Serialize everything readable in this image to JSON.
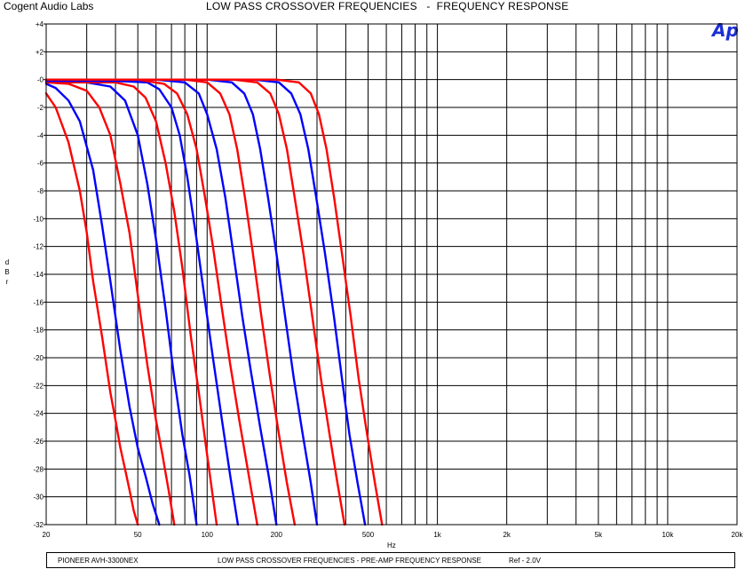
{
  "header": {
    "company": "Cogent Audio Labs",
    "title": "LOW PASS CROSSOVER FREQUENCIES   -  FREQUENCY RESPONSE",
    "logo_text": "Ap"
  },
  "footer": {
    "device": "PIONEER AVH-3300NEX",
    "description": "LOW PASS CROSSOVER FREQUENCIES - PRE-AMP FREQUENCY RESPONSE",
    "reference": "Ref - 2.0V"
  },
  "chart_data": {
    "type": "line",
    "title": "LOW PASS CROSSOVER FREQUENCIES   -  FREQUENCY RESPONSE",
    "xlabel": "Hz",
    "ylabel": "dBr",
    "x_scale": "log",
    "xlim": [
      20,
      20000
    ],
    "ylim": [
      -32,
      4
    ],
    "grid": true,
    "legend": "none",
    "x_ticks": [
      {
        "value": 20,
        "label": "20"
      },
      {
        "value": 50,
        "label": "50"
      },
      {
        "value": 100,
        "label": "100"
      },
      {
        "value": 200,
        "label": "200"
      },
      {
        "value": 500,
        "label": "500"
      },
      {
        "value": 1000,
        "label": "1k"
      },
      {
        "value": 2000,
        "label": "2k"
      },
      {
        "value": 5000,
        "label": "5k"
      },
      {
        "value": 10000,
        "label": "10k"
      },
      {
        "value": 20000,
        "label": "20k"
      }
    ],
    "y_ticks": [
      {
        "value": 4,
        "label": "+4"
      },
      {
        "value": 2,
        "label": "+2"
      },
      {
        "value": 0,
        "label": "-0"
      },
      {
        "value": -2,
        "label": "-2"
      },
      {
        "value": -4,
        "label": "-4"
      },
      {
        "value": -6,
        "label": "-6"
      },
      {
        "value": -8,
        "label": "-8"
      },
      {
        "value": -10,
        "label": "-10"
      },
      {
        "value": -12,
        "label": "-12"
      },
      {
        "value": -14,
        "label": "-14"
      },
      {
        "value": -16,
        "label": "-16"
      },
      {
        "value": -18,
        "label": "-18"
      },
      {
        "value": -20,
        "label": "-20"
      },
      {
        "value": -22,
        "label": "-22"
      },
      {
        "value": -24,
        "label": "-24"
      },
      {
        "value": -26,
        "label": "-26"
      },
      {
        "value": -28,
        "label": "-28"
      },
      {
        "value": -30,
        "label": "-30"
      },
      {
        "value": -32,
        "label": "-32"
      }
    ],
    "series": [
      {
        "color": "#ff0000",
        "x": [
          20,
          22,
          25,
          28,
          30,
          32,
          35,
          38,
          40,
          42,
          44,
          46,
          48,
          50
        ],
        "y": [
          -1.0,
          -2.0,
          -4.5,
          -8.0,
          -11.0,
          -14.5,
          -18.5,
          -22.5,
          -24.5,
          -26.5,
          -28.0,
          -29.5,
          -31.0,
          -32.0
        ]
      },
      {
        "color": "#0000ff",
        "x": [
          20,
          22,
          25,
          28,
          32,
          35,
          38,
          42,
          46,
          50,
          54,
          58,
          62
        ],
        "y": [
          -0.3,
          -0.6,
          -1.5,
          -3.0,
          -6.5,
          -10.5,
          -14.5,
          -19.5,
          -23.5,
          -26.5,
          -28.5,
          -30.5,
          -32.0
        ]
      },
      {
        "color": "#ff0000",
        "x": [
          20,
          25,
          30,
          34,
          38,
          42,
          46,
          50,
          55,
          60,
          64,
          68,
          72
        ],
        "y": [
          -0.2,
          -0.3,
          -0.8,
          -2.0,
          -4.0,
          -7.5,
          -11.0,
          -15.5,
          -20.5,
          -24.5,
          -27.0,
          -29.5,
          -32.0
        ]
      },
      {
        "color": "#0000ff",
        "x": [
          20,
          30,
          38,
          44,
          50,
          55,
          60,
          66,
          72,
          78,
          84,
          90
        ],
        "y": [
          -0.2,
          -0.2,
          -0.5,
          -1.5,
          -4.0,
          -7.5,
          -11.5,
          -16.5,
          -21.5,
          -25.5,
          -28.5,
          -32.0
        ]
      },
      {
        "color": "#ff0000",
        "x": [
          20,
          30,
          40,
          48,
          54,
          60,
          66,
          72,
          78,
          85,
          92,
          100,
          110
        ],
        "y": [
          -0.2,
          -0.2,
          -0.2,
          -0.5,
          -1.3,
          -3.0,
          -6.0,
          -9.5,
          -13.5,
          -18.5,
          -22.5,
          -27.0,
          -32.0
        ]
      },
      {
        "color": "#0000ff",
        "x": [
          20,
          40,
          55,
          62,
          70,
          76,
          82,
          90,
          98,
          106,
          116,
          126,
          136
        ],
        "y": [
          -0.1,
          -0.1,
          -0.2,
          -0.7,
          -2.0,
          -4.0,
          -7.0,
          -11.5,
          -16.0,
          -20.0,
          -24.5,
          -28.5,
          -32.0
        ]
      },
      {
        "color": "#ff0000",
        "x": [
          20,
          50,
          65,
          74,
          82,
          90,
          98,
          106,
          116,
          126,
          138,
          150,
          165
        ],
        "y": [
          0.0,
          0.0,
          -0.3,
          -1.0,
          -2.5,
          -5.0,
          -8.5,
          -12.0,
          -16.5,
          -20.5,
          -24.5,
          -28.0,
          -32.0
        ]
      },
      {
        "color": "#0000ff",
        "x": [
          20,
          60,
          80,
          92,
          100,
          110,
          120,
          130,
          142,
          155,
          170,
          185,
          200
        ],
        "y": [
          0.0,
          0.0,
          -0.2,
          -1.0,
          -2.5,
          -5.0,
          -8.5,
          -12.5,
          -17.0,
          -21.0,
          -25.0,
          -28.5,
          -32.0
        ]
      },
      {
        "color": "#ff0000",
        "x": [
          20,
          80,
          100,
          114,
          125,
          135,
          146,
          158,
          172,
          188,
          205,
          222,
          240
        ],
        "y": [
          0.0,
          0.0,
          -0.2,
          -1.0,
          -2.5,
          -5.0,
          -8.5,
          -12.5,
          -17.0,
          -21.5,
          -25.5,
          -29.0,
          -32.0
        ]
      },
      {
        "color": "#0000ff",
        "x": [
          20,
          100,
          128,
          145,
          158,
          170,
          184,
          200,
          218,
          238,
          260,
          282,
          300
        ],
        "y": [
          0.0,
          0.0,
          -0.2,
          -1.0,
          -2.5,
          -5.0,
          -8.5,
          -12.5,
          -17.0,
          -21.5,
          -25.5,
          -29.0,
          -32.0
        ]
      },
      {
        "color": "#ff0000",
        "x": [
          20,
          130,
          165,
          188,
          205,
          222,
          240,
          262,
          286,
          312,
          340,
          368,
          395
        ],
        "y": [
          0.0,
          0.0,
          -0.2,
          -1.0,
          -2.5,
          -5.0,
          -8.5,
          -12.5,
          -17.0,
          -21.5,
          -25.5,
          -29.0,
          -32.0
        ]
      },
      {
        "color": "#0000ff",
        "x": [
          20,
          160,
          205,
          232,
          254,
          275,
          298,
          325,
          355,
          385,
          415,
          450,
          485
        ],
        "y": [
          0.0,
          0.0,
          -0.2,
          -1.0,
          -2.5,
          -5.0,
          -8.5,
          -12.5,
          -17.0,
          -21.5,
          -25.5,
          -29.0,
          -32.0
        ]
      },
      {
        "color": "#ff0000",
        "x": [
          20,
          200,
          250,
          282,
          306,
          330,
          356,
          385,
          420,
          455,
          495,
          535,
          575
        ],
        "y": [
          0.0,
          0.0,
          -0.2,
          -1.0,
          -2.5,
          -5.0,
          -8.5,
          -12.5,
          -17.0,
          -21.5,
          -25.5,
          -29.0,
          -32.0
        ]
      }
    ]
  }
}
